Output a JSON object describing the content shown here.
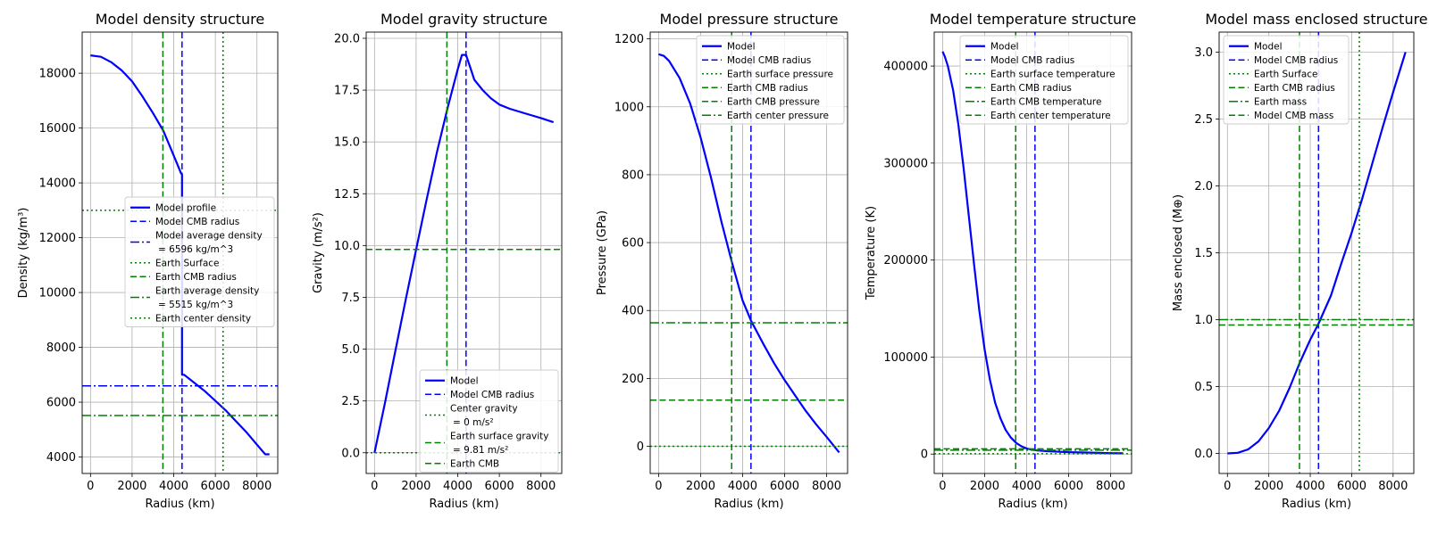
{
  "colors": {
    "blue": "#0000ff",
    "green": "#008000",
    "grid": "#b0b0b0"
  },
  "chart_data": [
    {
      "type": "line",
      "title": "Model density structure",
      "xlabel": "Radius (km)",
      "ylabel": "Density (kg/m³)",
      "xlim": [
        -400,
        9000
      ],
      "ylim": [
        3400,
        19500
      ],
      "xticks": [
        0,
        2000,
        4000,
        6000,
        8000
      ],
      "yticks": [
        4000,
        6000,
        8000,
        10000,
        12000,
        14000,
        16000,
        18000
      ],
      "grid": true,
      "legend_position": "center-right",
      "series": [
        {
          "name": "Model profile",
          "color": "#0000ff",
          "dash": "solid",
          "width": 2.2,
          "x": [
            0,
            500,
            1000,
            1500,
            2000,
            2500,
            3000,
            3500,
            4000,
            4350,
            4400,
            4400,
            4500,
            5000,
            5500,
            6000,
            6500,
            7000,
            7500,
            8000,
            8400,
            8600
          ],
          "y": [
            18650,
            18600,
            18400,
            18100,
            17700,
            17150,
            16550,
            15900,
            15000,
            14350,
            14300,
            7000,
            7000,
            6700,
            6400,
            6050,
            5700,
            5300,
            4900,
            4450,
            4100,
            4100
          ]
        },
        {
          "name": "Model CMB radius",
          "kind": "vline",
          "value": 4400,
          "color": "#0000ff",
          "dash": "dashed"
        },
        {
          "name": "Model average density\n= 6596 kg/m^3",
          "kind": "hline",
          "value": 6596,
          "color": "#0000ff",
          "dash": "dashdot"
        },
        {
          "name": "Earth Surface",
          "kind": "vline",
          "value": 6371,
          "color": "#008000",
          "dash": "dotted"
        },
        {
          "name": "Earth CMB radius",
          "kind": "vline",
          "value": 3480,
          "color": "#008000",
          "dash": "dashed"
        },
        {
          "name": "Earth average density\n= 5515 kg/m^3",
          "kind": "hline",
          "value": 5515,
          "color": "#008000",
          "dash": "dashdot"
        },
        {
          "name": "Earth center density",
          "kind": "hline",
          "value": 13000,
          "color": "#008000",
          "dash": "dotted"
        }
      ]
    },
    {
      "type": "line",
      "title": "Model gravity structure",
      "xlabel": "Radius (km)",
      "ylabel": "Gravity (m/s²)",
      "xlim": [
        -400,
        9000
      ],
      "ylim": [
        -1,
        20.3
      ],
      "xticks": [
        0,
        2000,
        4000,
        6000,
        8000
      ],
      "yticks": [
        0.0,
        2.5,
        5.0,
        7.5,
        10.0,
        12.5,
        15.0,
        17.5,
        20.0
      ],
      "ytick_labels": [
        "0.0",
        "2.5",
        "5.0",
        "7.5",
        "10.0",
        "12.5",
        "15.0",
        "17.5",
        "20.0"
      ],
      "grid": true,
      "legend_position": "lower-right",
      "series": [
        {
          "name": "Model",
          "color": "#0000ff",
          "dash": "solid",
          "width": 2.2,
          "x": [
            0,
            500,
            1000,
            1500,
            2000,
            2500,
            3000,
            3500,
            4000,
            4200,
            4400,
            4600,
            4800,
            5200,
            5600,
            6000,
            6500,
            7000,
            7500,
            8000,
            8600
          ],
          "y": [
            0,
            2.4,
            4.9,
            7.4,
            9.8,
            12.2,
            14.5,
            16.6,
            18.5,
            19.2,
            19.2,
            18.6,
            18.0,
            17.5,
            17.1,
            16.8,
            16.6,
            16.45,
            16.3,
            16.15,
            15.95
          ]
        },
        {
          "name": "Model CMB radius",
          "kind": "vline",
          "value": 4400,
          "color": "#0000ff",
          "dash": "dashed"
        },
        {
          "name": "Center gravity\n= 0 m/s²",
          "kind": "hline",
          "value": 0,
          "color": "#008000",
          "dash": "dotted"
        },
        {
          "name": "Earth surface gravity\n= 9.81 m/s²",
          "kind": "hline",
          "value": 9.81,
          "color": "#008000",
          "dash": "dashed"
        },
        {
          "name": "Earth CMB",
          "kind": "vline",
          "value": 3480,
          "color": "#008000",
          "dash": "dashed"
        }
      ]
    },
    {
      "type": "line",
      "title": "Model pressure structure",
      "xlabel": "Radius (km)",
      "ylabel": "Pressure (GPa)",
      "xlim": [
        -400,
        9000
      ],
      "ylim": [
        -80,
        1220
      ],
      "xticks": [
        0,
        2000,
        4000,
        6000,
        8000
      ],
      "yticks": [
        0,
        200,
        400,
        600,
        800,
        1000,
        1200
      ],
      "grid": true,
      "legend_position": "upper-right",
      "series": [
        {
          "name": "Model",
          "color": "#0000ff",
          "dash": "solid",
          "width": 2.2,
          "x": [
            0,
            250,
            500,
            1000,
            1500,
            2000,
            2500,
            3000,
            3500,
            4000,
            4400,
            5000,
            5500,
            6000,
            6500,
            7000,
            7500,
            8000,
            8600
          ],
          "y": [
            1155,
            1150,
            1135,
            1085,
            1010,
            910,
            790,
            660,
            540,
            430,
            370,
            300,
            245,
            195,
            150,
            105,
            65,
            28,
            -18
          ]
        },
        {
          "name": "Model CMB radius",
          "kind": "vline",
          "value": 4400,
          "color": "#0000ff",
          "dash": "dashed"
        },
        {
          "name": "Earth surface pressure",
          "kind": "hline",
          "value": 0,
          "color": "#008000",
          "dash": "dotted"
        },
        {
          "name": "Earth CMB radius",
          "kind": "vline",
          "value": 3480,
          "color": "#008000",
          "dash": "dashed"
        },
        {
          "name": "Earth CMB pressure",
          "kind": "hline",
          "value": 136,
          "color": "#008000",
          "dash": "dashed"
        },
        {
          "name": "Earth center pressure",
          "kind": "hline",
          "value": 364,
          "color": "#008000",
          "dash": "dashdot"
        }
      ]
    },
    {
      "type": "line",
      "title": "Model temperature structure",
      "xlabel": "Radius (km)",
      "ylabel": "Temperature (K)",
      "xlim": [
        -400,
        9000
      ],
      "ylim": [
        -20000,
        435000
      ],
      "xticks": [
        0,
        2000,
        4000,
        6000,
        8000
      ],
      "yticks": [
        0,
        100000,
        200000,
        300000,
        400000
      ],
      "grid": true,
      "legend_position": "upper-right",
      "series": [
        {
          "name": "Model",
          "color": "#0000ff",
          "dash": "solid",
          "width": 2.2,
          "x": [
            0,
            100,
            250,
            500,
            750,
            1000,
            1250,
            1500,
            1750,
            2000,
            2250,
            2500,
            2750,
            3000,
            3250,
            3500,
            3750,
            4000,
            4250,
            4500,
            5000,
            6000,
            7000,
            8000,
            8600
          ],
          "y": [
            415000,
            410000,
            400000,
            375000,
            340000,
            295000,
            245000,
            195000,
            148000,
            108000,
            77000,
            53000,
            37000,
            25000,
            17000,
            11500,
            8000,
            5800,
            4500,
            3800,
            3000,
            2000,
            1500,
            1000,
            800
          ]
        },
        {
          "name": "Model CMB radius",
          "kind": "vline",
          "value": 4400,
          "color": "#0000ff",
          "dash": "dashed"
        },
        {
          "name": "Earth surface temperature",
          "kind": "hline",
          "value": 288,
          "color": "#008000",
          "dash": "dotted"
        },
        {
          "name": "Earth CMB radius",
          "kind": "vline",
          "value": 3480,
          "color": "#008000",
          "dash": "dashed"
        },
        {
          "name": "Earth CMB temperature",
          "kind": "hline",
          "value": 4000,
          "color": "#008000",
          "dash": "dashdot"
        },
        {
          "name": "Earth center temperature",
          "kind": "hline",
          "value": 5400,
          "color": "#008000",
          "dash": "dashed"
        }
      ]
    },
    {
      "type": "line",
      "title": "Model mass enclosed structure",
      "xlabel": "Radius (km)",
      "ylabel": "Mass enclosed (M⊕)",
      "xlim": [
        -400,
        9000
      ],
      "ylim": [
        -0.15,
        3.15
      ],
      "xticks": [
        0,
        2000,
        4000,
        6000,
        8000
      ],
      "yticks": [
        0.0,
        0.5,
        1.0,
        1.5,
        2.0,
        2.5,
        3.0
      ],
      "ytick_labels": [
        "0.0",
        "0.5",
        "1.0",
        "1.5",
        "2.0",
        "2.5",
        "3.0"
      ],
      "grid": true,
      "legend_position": "upper-left",
      "series": [
        {
          "name": "Model",
          "color": "#0000ff",
          "dash": "solid",
          "width": 2.2,
          "x": [
            0,
            500,
            1000,
            1500,
            2000,
            2500,
            3000,
            3500,
            4000,
            4400,
            5000,
            5500,
            6000,
            6500,
            7000,
            7500,
            8000,
            8600
          ],
          "y": [
            0.0,
            0.005,
            0.03,
            0.09,
            0.19,
            0.32,
            0.49,
            0.68,
            0.85,
            0.97,
            1.18,
            1.42,
            1.65,
            1.9,
            2.17,
            2.44,
            2.7,
            3.0
          ]
        },
        {
          "name": "Model CMB radius",
          "kind": "vline",
          "value": 4400,
          "color": "#0000ff",
          "dash": "dashed"
        },
        {
          "name": "Earth Surface",
          "kind": "vline",
          "value": 6371,
          "color": "#008000",
          "dash": "dotted"
        },
        {
          "name": "Earth CMB radius",
          "kind": "vline",
          "value": 3480,
          "color": "#008000",
          "dash": "dashed"
        },
        {
          "name": "Earth mass",
          "kind": "hline",
          "value": 1.0,
          "color": "#008000",
          "dash": "dashdot"
        },
        {
          "name": "Model CMB mass",
          "kind": "hline",
          "value": 0.96,
          "color": "#008000",
          "dash": "dashed"
        }
      ]
    }
  ]
}
